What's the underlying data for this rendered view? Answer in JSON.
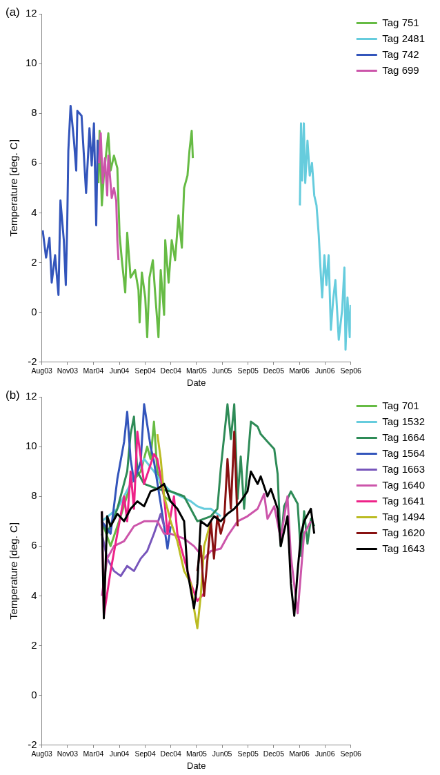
{
  "chart_data": [
    {
      "type": "line",
      "title": "(a)",
      "xlabel": "Date",
      "ylabel": "Temperature [deg. C]",
      "xlim": [
        "2003-08-31",
        "2006-09-01"
      ],
      "xticks": [
        {
          "value": "2003-08-31",
          "label": "Aug03"
        },
        {
          "value": "2003-11-30",
          "label": "Nov03"
        },
        {
          "value": "2004-03-01",
          "label": "Mar04"
        },
        {
          "value": "2004-06-01",
          "label": "Jun04"
        },
        {
          "value": "2004-09-01",
          "label": "Sep04"
        },
        {
          "value": "2004-12-01",
          "label": "Dec04"
        },
        {
          "value": "2005-03-02",
          "label": "Mar05"
        },
        {
          "value": "2005-06-01",
          "label": "Jun05"
        },
        {
          "value": "2005-09-01",
          "label": "Sep05"
        },
        {
          "value": "2005-12-01",
          "label": "Dec05"
        },
        {
          "value": "2006-03-02",
          "label": "Mar06"
        },
        {
          "value": "2006-06-01",
          "label": "Jun06"
        },
        {
          "value": "2006-09-01",
          "label": "Sep06"
        }
      ],
      "ylim": [
        -2,
        12
      ],
      "yticks": [
        -2,
        0,
        2,
        4,
        6,
        8,
        10,
        12
      ],
      "legend": "top right",
      "series": [
        {
          "name": "Tag 751",
          "color": "#66bb44",
          "x": [
            "2004-03-19",
            "2004-03-23",
            "2004-03-31",
            "2004-04-07",
            "2004-04-23",
            "2004-05-01",
            "2004-05-13",
            "2004-05-25",
            "2004-06-02",
            "2004-06-10",
            "2004-06-22",
            "2004-06-29",
            "2004-07-11",
            "2004-07-27",
            "2004-08-08",
            "2004-08-12",
            "2004-08-20",
            "2004-09-01",
            "2004-09-08",
            "2004-09-16",
            "2004-09-28",
            "2004-10-06",
            "2004-10-18",
            "2004-10-26",
            "2004-11-07",
            "2004-11-11",
            "2004-11-23",
            "2004-12-04",
            "2004-12-16",
            "2004-12-28",
            "2005-01-09",
            "2005-01-17",
            "2005-01-29",
            "2005-02-05",
            "2005-02-13",
            "2005-02-17"
          ],
          "values": [
            5.2,
            7.3,
            4.3,
            5.5,
            7.2,
            5.7,
            6.3,
            5.8,
            3.1,
            2.1,
            0.8,
            3.2,
            1.4,
            1.7,
            0.9,
            -0.4,
            1.6,
            0.6,
            -1.0,
            1.4,
            2.1,
            0.8,
            -1.0,
            1.7,
            -0.1,
            2.9,
            1.2,
            2.9,
            2.1,
            3.9,
            2.6,
            5.0,
            5.5,
            6.5,
            7.3,
            6.2
          ]
        },
        {
          "name": "Tag 2481",
          "color": "#66ccdd",
          "x": [
            "2006-03-04",
            "2006-03-08",
            "2006-03-12",
            "2006-03-18",
            "2006-03-23",
            "2006-03-31",
            "2006-04-08",
            "2006-04-16",
            "2006-04-24",
            "2006-05-02",
            "2006-05-10",
            "2006-05-14",
            "2006-05-22",
            "2006-05-30",
            "2006-06-06",
            "2006-06-14",
            "2006-06-22",
            "2006-06-30",
            "2006-07-08",
            "2006-07-20",
            "2006-08-01",
            "2006-08-09",
            "2006-08-13",
            "2006-08-20",
            "2006-08-28",
            "2006-08-31"
          ],
          "values": [
            4.3,
            7.6,
            5.3,
            7.6,
            5.2,
            6.9,
            5.5,
            6.0,
            4.7,
            4.3,
            3.1,
            2.2,
            0.6,
            2.3,
            1.1,
            2.3,
            -0.7,
            0.5,
            1.3,
            -1.1,
            0.1,
            1.8,
            -1.5,
            0.6,
            -1.0,
            0.3
          ]
        },
        {
          "name": "Tag 742",
          "color": "#3355bb",
          "x": [
            "2003-09-03",
            "2003-09-15",
            "2003-09-27",
            "2003-10-05",
            "2003-10-17",
            "2003-10-29",
            "2003-11-05",
            "2003-11-17",
            "2003-11-24",
            "2003-11-29",
            "2003-12-03",
            "2003-12-11",
            "2003-12-23",
            "2003-12-31",
            "2004-01-04",
            "2004-01-19",
            "2004-02-04",
            "2004-02-16",
            "2004-02-24",
            "2004-03-03",
            "2004-03-11",
            "2004-03-16",
            "2004-03-19"
          ],
          "values": [
            3.3,
            2.2,
            3.0,
            1.2,
            2.3,
            0.7,
            4.5,
            2.9,
            1.1,
            3.5,
            6.5,
            8.3,
            6.9,
            5.7,
            8.1,
            7.9,
            4.8,
            7.4,
            5.9,
            7.6,
            3.5,
            6.9,
            6.0
          ]
        },
        {
          "name": "Tag 699",
          "color": "#cc55aa",
          "x": [
            "2004-03-21",
            "2004-03-27",
            "2004-04-03",
            "2004-04-11",
            "2004-04-19",
            "2004-04-23",
            "2004-05-05",
            "2004-05-13",
            "2004-05-21",
            "2004-05-25",
            "2004-05-29"
          ],
          "values": [
            6.0,
            7.2,
            5.2,
            6.2,
            4.7,
            6.3,
            4.6,
            5.0,
            4.5,
            2.9,
            2.1
          ]
        }
      ]
    },
    {
      "type": "line",
      "title": "(b)",
      "xlabel": "Date",
      "ylabel": "Temperature [deg. C]",
      "xlim": [
        "2003-08-31",
        "2006-09-01"
      ],
      "xticks": [
        {
          "value": "2003-08-31",
          "label": "Aug03"
        },
        {
          "value": "2003-11-30",
          "label": "Nov03"
        },
        {
          "value": "2004-03-01",
          "label": "Mar04"
        },
        {
          "value": "2004-06-01",
          "label": "Jun04"
        },
        {
          "value": "2004-09-01",
          "label": "Sep04"
        },
        {
          "value": "2004-12-01",
          "label": "Dec04"
        },
        {
          "value": "2005-03-02",
          "label": "Mar05"
        },
        {
          "value": "2005-06-01",
          "label": "Jun05"
        },
        {
          "value": "2005-09-01",
          "label": "Sep05"
        },
        {
          "value": "2005-12-01",
          "label": "Dec05"
        },
        {
          "value": "2006-03-02",
          "label": "Mar06"
        },
        {
          "value": "2006-06-01",
          "label": "Jun06"
        },
        {
          "value": "2006-09-01",
          "label": "Sep06"
        }
      ],
      "ylim": [
        -2,
        12
      ],
      "yticks": [
        -2,
        0,
        2,
        4,
        6,
        8,
        10,
        12
      ],
      "legend": "top right",
      "series": [
        {
          "name": "Tag 701",
          "color": "#66bb44",
          "x": [
            "2004-03-31",
            "2004-05-01",
            "2004-06-06",
            "2004-07-11",
            "2004-08-16",
            "2004-09-08",
            "2004-09-20",
            "2004-10-02",
            "2004-10-14",
            "2004-11-07",
            "2004-11-30"
          ],
          "values": [
            7.0,
            6.0,
            7.2,
            8.5,
            9.0,
            10.0,
            9.5,
            11.0,
            9.0,
            8.0,
            7.8
          ]
        },
        {
          "name": "Tag 1532",
          "color": "#66ccdd",
          "x": [
            "2004-03-31",
            "2004-05-25",
            "2004-07-11",
            "2004-08-28",
            "2004-10-02",
            "2004-10-26",
            "2004-11-30",
            "2005-01-05",
            "2005-02-10",
            "2005-03-05",
            "2005-03-29",
            "2005-04-22",
            "2005-05-15",
            "2005-05-27"
          ],
          "values": [
            7.0,
            7.5,
            8.5,
            9.5,
            9.0,
            8.6,
            8.2,
            8.0,
            7.8,
            7.6,
            7.5,
            7.5,
            7.3,
            7.2
          ]
        },
        {
          "name": "Tag 1664",
          "color": "#2e8b57",
          "x": [
            "2004-03-31",
            "2004-04-19",
            "2004-05-25",
            "2004-06-29",
            "2004-07-11",
            "2004-07-23",
            "2004-08-04",
            "2004-08-28",
            "2004-10-14",
            "2004-11-30",
            "2005-01-17",
            "2005-03-05",
            "2005-04-22",
            "2005-05-15",
            "2005-05-27",
            "2005-06-20",
            "2005-07-02",
            "2005-07-14",
            "2005-07-26",
            "2005-08-06",
            "2005-08-18",
            "2005-08-30",
            "2005-09-11",
            "2005-10-05",
            "2005-10-16",
            "2005-11-09",
            "2005-12-03",
            "2005-12-15",
            "2005-12-26",
            "2006-01-07",
            "2006-01-31",
            "2006-02-24",
            "2006-03-08",
            "2006-03-19",
            "2006-03-31",
            "2006-04-12",
            "2006-04-24"
          ],
          "values": [
            7.0,
            6.5,
            7.5,
            9.0,
            10.5,
            11.2,
            9.0,
            8.5,
            8.3,
            8.2,
            8.0,
            7.0,
            7.2,
            7.5,
            9.1,
            11.7,
            10.3,
            11.7,
            7.9,
            9.6,
            7.5,
            9.3,
            11.0,
            10.8,
            10.5,
            10.2,
            9.9,
            8.9,
            6.0,
            7.6,
            8.2,
            7.7,
            5.6,
            7.4,
            6.1,
            7.1,
            6.8
          ]
        },
        {
          "name": "Tag 1564",
          "color": "#3355bb",
          "x": [
            "2004-03-31",
            "2004-05-01",
            "2004-05-25",
            "2004-06-18",
            "2004-06-29",
            "2004-07-11",
            "2004-07-23",
            "2004-08-16",
            "2004-08-28",
            "2004-09-20",
            "2004-10-02",
            "2004-10-26",
            "2004-11-19",
            "2004-11-30"
          ],
          "values": [
            7.0,
            6.5,
            8.7,
            10.2,
            11.4,
            9.5,
            8.6,
            9.4,
            11.7,
            10.0,
            9.4,
            7.7,
            5.9,
            6.8
          ]
        },
        {
          "name": "Tag 1663",
          "color": "#7755bb",
          "x": [
            "2004-03-31",
            "2004-04-19",
            "2004-05-13",
            "2004-06-06",
            "2004-06-29",
            "2004-07-23",
            "2004-08-16",
            "2004-09-08",
            "2004-10-02",
            "2004-10-26",
            "2004-11-07"
          ],
          "values": [
            6.5,
            5.5,
            5.0,
            4.8,
            5.2,
            5.0,
            5.5,
            5.8,
            6.5,
            7.3,
            6.8
          ]
        },
        {
          "name": "Tag 1640",
          "color": "#cc55aa",
          "x": [
            "2004-03-31",
            "2004-04-19",
            "2004-05-13",
            "2004-06-18",
            "2004-07-23",
            "2004-08-28",
            "2004-10-14",
            "2004-11-07",
            "2004-11-30",
            "2005-01-17",
            "2005-02-21",
            "2005-03-29",
            "2005-04-22",
            "2005-05-27",
            "2005-06-20",
            "2005-07-26",
            "2005-08-30",
            "2005-10-05",
            "2005-10-28",
            "2005-11-09",
            "2005-12-03",
            "2005-12-26",
            "2006-01-19",
            "2006-01-31",
            "2006-02-24",
            "2006-03-19",
            "2006-04-12"
          ],
          "values": [
            4.0,
            5.5,
            6.0,
            6.2,
            6.8,
            7.0,
            7.0,
            6.5,
            6.5,
            6.3,
            6.0,
            5.5,
            5.8,
            5.9,
            6.4,
            7.0,
            7.2,
            7.5,
            8.1,
            7.1,
            7.6,
            6.3,
            8.0,
            5.6,
            3.3,
            6.5,
            7.0
          ]
        },
        {
          "name": "Tag 1641",
          "color": "#ee2288",
          "x": [
            "2004-03-31",
            "2004-04-07",
            "2004-05-01",
            "2004-05-25",
            "2004-06-18",
            "2004-06-29",
            "2004-07-11",
            "2004-07-23",
            "2004-08-04",
            "2004-08-28",
            "2004-10-02",
            "2004-10-14",
            "2004-11-07",
            "2004-11-19",
            "2004-12-12",
            "2004-12-24",
            "2005-01-17",
            "2005-02-10",
            "2005-03-05",
            "2005-03-29"
          ],
          "values": [
            7.4,
            3.2,
            5.0,
            6.5,
            8.0,
            7.0,
            9.0,
            7.5,
            10.6,
            8.5,
            9.7,
            9.5,
            8.0,
            6.5,
            8.0,
            6.5,
            5.5,
            4.5,
            3.8,
            4.1
          ]
        },
        {
          "name": "Tag 1494",
          "color": "#bbbb22",
          "x": [
            "2004-10-14",
            "2004-10-26",
            "2004-11-07",
            "2004-11-19",
            "2004-11-30",
            "2004-12-24",
            "2005-01-17",
            "2005-02-10",
            "2005-02-21",
            "2005-03-05",
            "2005-03-17",
            "2005-03-29",
            "2005-04-22"
          ],
          "values": [
            10.5,
            9.5,
            8.0,
            7.5,
            7.0,
            6.2,
            5.0,
            4.5,
            3.5,
            2.7,
            4.0,
            6.0,
            7.0
          ]
        },
        {
          "name": "Tag 1620",
          "color": "#881111",
          "x": [
            "2005-03-05",
            "2005-03-17",
            "2005-03-29",
            "2005-04-10",
            "2005-04-22",
            "2005-05-03",
            "2005-05-15",
            "2005-05-27",
            "2005-06-08",
            "2005-06-20",
            "2005-07-02",
            "2005-07-14",
            "2005-07-26"
          ],
          "values": [
            5.0,
            6.0,
            4.0,
            5.5,
            7.0,
            5.5,
            7.2,
            6.5,
            7.0,
            9.5,
            7.5,
            10.6,
            6.8
          ]
        },
        {
          "name": "Tag 1643",
          "color": "#000000",
          "x": [
            "2004-03-31",
            "2004-04-07",
            "2004-04-19",
            "2004-05-01",
            "2004-05-25",
            "2004-06-18",
            "2004-07-11",
            "2004-08-04",
            "2004-08-28",
            "2004-09-20",
            "2004-10-14",
            "2004-11-07",
            "2004-11-30",
            "2004-12-24",
            "2005-01-17",
            "2005-01-29",
            "2005-02-21",
            "2005-03-05",
            "2005-03-17",
            "2005-04-10",
            "2005-05-03",
            "2005-05-27",
            "2005-06-20",
            "2005-07-14",
            "2005-08-06",
            "2005-08-30",
            "2005-09-11",
            "2005-10-05",
            "2005-10-16",
            "2005-11-09",
            "2005-11-21",
            "2005-12-15",
            "2005-12-26",
            "2006-01-19",
            "2006-01-31",
            "2006-02-12",
            "2006-02-24",
            "2006-03-08",
            "2006-03-19",
            "2006-04-12",
            "2006-04-24"
          ],
          "values": [
            7.4,
            3.1,
            7.2,
            6.8,
            7.3,
            7.0,
            7.5,
            7.8,
            7.6,
            8.2,
            8.3,
            8.5,
            7.8,
            7.5,
            7.0,
            5.0,
            3.5,
            4.5,
            7.0,
            6.8,
            7.2,
            7.0,
            7.3,
            7.5,
            7.8,
            8.2,
            9.0,
            8.5,
            8.8,
            8.0,
            8.3,
            7.5,
            6.0,
            7.2,
            4.5,
            3.2,
            5.0,
            6.5,
            7.0,
            7.5,
            6.5
          ]
        }
      ]
    }
  ]
}
